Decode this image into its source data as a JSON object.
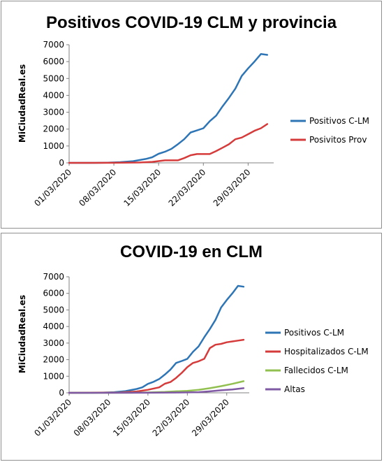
{
  "chart_data": [
    {
      "type": "line",
      "title": "Positivos COVID-19  CLM y provincia",
      "xlabel": "",
      "ylabel": "MiCiudadReal.es",
      "ylim": [
        0,
        7000
      ],
      "yticks": [
        "0",
        "1000",
        "2000",
        "3000",
        "4000",
        "5000",
        "6000",
        "7000"
      ],
      "x_tick_labels": [
        "01/03/2020",
        "08/03/2020",
        "15/03/2020",
        "22/03/2020",
        "29/03/2020"
      ],
      "x_range": [
        "2020-03-01",
        "2020-04-02"
      ],
      "legend_position": "right",
      "grid": false,
      "series": [
        {
          "name": "Positivos C-LM",
          "color": "#2e75b6",
          "x": [
            "2020-03-01",
            "2020-03-05",
            "2020-03-07",
            "2020-03-09",
            "2020-03-11",
            "2020-03-13",
            "2020-03-14",
            "2020-03-15",
            "2020-03-16",
            "2020-03-17",
            "2020-03-18",
            "2020-03-19",
            "2020-03-20",
            "2020-03-21",
            "2020-03-22",
            "2020-03-23",
            "2020-03-24",
            "2020-03-25",
            "2020-03-26",
            "2020-03-27",
            "2020-03-28",
            "2020-03-29",
            "2020-03-30",
            "2020-03-31",
            "2020-04-01"
          ],
          "values": [
            0,
            2,
            12,
            40,
            100,
            230,
            330,
            540,
            660,
            830,
            1100,
            1400,
            1800,
            1920,
            2050,
            2470,
            2800,
            3350,
            3850,
            4400,
            5150,
            5600,
            6000,
            6450,
            6400
          ]
        },
        {
          "name": "Posivitos Prov",
          "color": "#d63b3b",
          "x": [
            "2020-03-01",
            "2020-03-08",
            "2020-03-12",
            "2020-03-14",
            "2020-03-16",
            "2020-03-18",
            "2020-03-19",
            "2020-03-20",
            "2020-03-21",
            "2020-03-22",
            "2020-03-23",
            "2020-03-24",
            "2020-03-25",
            "2020-03-26",
            "2020-03-27",
            "2020-03-28",
            "2020-03-29",
            "2020-03-30",
            "2020-03-31",
            "2020-04-01"
          ],
          "values": [
            0,
            5,
            20,
            60,
            150,
            150,
            280,
            450,
            520,
            520,
            520,
            700,
            900,
            1100,
            1400,
            1500,
            1700,
            1900,
            2050,
            2300
          ]
        }
      ]
    },
    {
      "type": "line",
      "title": "COVID-19  en CLM",
      "xlabel": "",
      "ylabel": "MiCiudadReal.es",
      "ylim": [
        0,
        7000
      ],
      "yticks": [
        "0",
        "1000",
        "2000",
        "3000",
        "4000",
        "5000",
        "6000",
        "7000"
      ],
      "x_tick_labels": [
        "01/03/2020",
        "08/03/2020",
        "15/03/2020",
        "22/03/2020",
        "29/03/2020"
      ],
      "x_range": [
        "2020-03-01",
        "2020-04-02"
      ],
      "legend_position": "right",
      "grid": false,
      "series": [
        {
          "name": "Positivos C-LM",
          "color": "#2e75b6",
          "x": [
            "2020-03-01",
            "2020-03-05",
            "2020-03-07",
            "2020-03-09",
            "2020-03-11",
            "2020-03-13",
            "2020-03-14",
            "2020-03-15",
            "2020-03-16",
            "2020-03-17",
            "2020-03-18",
            "2020-03-19",
            "2020-03-20",
            "2020-03-21",
            "2020-03-22",
            "2020-03-23",
            "2020-03-24",
            "2020-03-25",
            "2020-03-26",
            "2020-03-27",
            "2020-03-28",
            "2020-03-29",
            "2020-03-30",
            "2020-03-31",
            "2020-04-01"
          ],
          "values": [
            0,
            2,
            12,
            40,
            100,
            230,
            330,
            540,
            660,
            830,
            1100,
            1400,
            1800,
            1920,
            2050,
            2470,
            2800,
            3350,
            3850,
            4400,
            5150,
            5600,
            6000,
            6450,
            6400
          ]
        },
        {
          "name": "Hospitalizados C-LM",
          "color": "#d63b3b",
          "x": [
            "2020-03-01",
            "2020-03-10",
            "2020-03-13",
            "2020-03-15",
            "2020-03-17",
            "2020-03-18",
            "2020-03-19",
            "2020-03-20",
            "2020-03-21",
            "2020-03-22",
            "2020-03-23",
            "2020-03-24",
            "2020-03-25",
            "2020-03-26",
            "2020-03-27",
            "2020-03-28",
            "2020-03-29",
            "2020-03-30",
            "2020-03-31",
            "2020-04-01"
          ],
          "values": [
            0,
            20,
            80,
            180,
            330,
            550,
            650,
            900,
            1200,
            1550,
            1800,
            1900,
            2050,
            2700,
            2900,
            2950,
            3050,
            3100,
            3150,
            3200
          ]
        },
        {
          "name": "Fallecidos C-LM",
          "color": "#92c050",
          "x": [
            "2020-03-01",
            "2020-03-12",
            "2020-03-15",
            "2020-03-18",
            "2020-03-20",
            "2020-03-22",
            "2020-03-24",
            "2020-03-26",
            "2020-03-28",
            "2020-03-30",
            "2020-04-01"
          ],
          "values": [
            0,
            5,
            20,
            50,
            90,
            120,
            180,
            280,
            400,
            540,
            700
          ]
        },
        {
          "name": "Altas",
          "color": "#7f59a3",
          "x": [
            "2020-03-01",
            "2020-03-15",
            "2020-03-20",
            "2020-03-24",
            "2020-03-26",
            "2020-03-28",
            "2020-03-30",
            "2020-04-01"
          ],
          "values": [
            0,
            5,
            15,
            40,
            90,
            150,
            200,
            280
          ]
        }
      ]
    }
  ]
}
